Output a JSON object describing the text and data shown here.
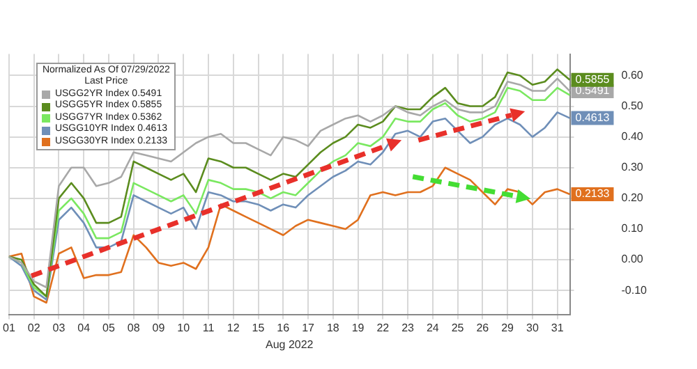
{
  "chart_data": {
    "type": "line",
    "legend_title": "Normalized As Of 07/29/2022",
    "annotations": [
      "Last Price"
    ],
    "xlabel": "Aug 2022",
    "categories": [
      "01",
      null,
      "02",
      null,
      "03",
      null,
      "04",
      null,
      "05",
      null,
      "08",
      null,
      "09",
      null,
      "10",
      null,
      "11",
      null,
      "12",
      null,
      "15",
      null,
      "16",
      null,
      "17",
      null,
      "18",
      null,
      "19",
      null,
      "22",
      null,
      "23",
      null,
      "24",
      null,
      "25",
      null,
      "26",
      null,
      "29",
      null,
      "30",
      null,
      "31",
      null
    ],
    "ylim": [
      -0.18,
      0.67
    ],
    "yticks": [
      {
        "value": -0.1,
        "label": "-0.10"
      },
      {
        "value": 0,
        "label": "0.00"
      },
      {
        "value": 0.1,
        "label": "0.10"
      },
      {
        "value": 0.2,
        "label": "0.20"
      },
      {
        "value": 0.3,
        "label": "0.30"
      },
      {
        "value": 0.4,
        "label": "0.40"
      },
      {
        "value": 0.5,
        "label": "0.50"
      },
      {
        "value": 0.6,
        "label": "0.60"
      }
    ],
    "grid": true,
    "legend": "top left",
    "marker": "none",
    "line_style": "solid",
    "series": [
      {
        "name": "USGG2YR Index 0.5491",
        "color": "#a8a8a8",
        "values": [
          0.01,
          -0.01,
          -0.07,
          -0.09,
          0.24,
          0.3,
          0.3,
          0.24,
          0.25,
          0.27,
          0.35,
          0.34,
          0.33,
          0.32,
          0.35,
          0.38,
          0.4,
          0.41,
          0.38,
          0.38,
          0.36,
          0.34,
          0.4,
          0.39,
          0.37,
          0.42,
          0.44,
          0.46,
          0.47,
          0.45,
          0.47,
          0.5,
          0.48,
          0.47,
          0.5,
          0.52,
          0.49,
          0.48,
          0.48,
          0.5,
          0.58,
          0.57,
          0.55,
          0.55,
          0.59,
          0.5491
        ],
        "value_labels": [
          null,
          null,
          null,
          null,
          null,
          null,
          null,
          null,
          null,
          null,
          null,
          null,
          null,
          null,
          null,
          null,
          null,
          null,
          null,
          null,
          null,
          null,
          null,
          null,
          null,
          null,
          null,
          null,
          null,
          null,
          null,
          null,
          null,
          null,
          null,
          null,
          null,
          null,
          null,
          null,
          null,
          null,
          null,
          null,
          null,
          "0.5491"
        ]
      },
      {
        "name": "USGG5YR Index 0.5855",
        "color": "#5b8c1e",
        "values": [
          0.01,
          0.0,
          -0.08,
          -0.12,
          0.2,
          0.25,
          0.2,
          0.12,
          0.12,
          0.14,
          0.32,
          0.3,
          0.28,
          0.26,
          0.28,
          0.22,
          0.33,
          0.32,
          0.3,
          0.3,
          0.28,
          0.26,
          0.28,
          0.27,
          0.31,
          0.35,
          0.38,
          0.4,
          0.44,
          0.43,
          0.45,
          0.5,
          0.49,
          0.49,
          0.53,
          0.56,
          0.51,
          0.5,
          0.5,
          0.53,
          0.61,
          0.6,
          0.57,
          0.58,
          0.62,
          0.5855
        ],
        "value_labels": [
          null,
          null,
          null,
          null,
          null,
          null,
          null,
          null,
          null,
          null,
          null,
          null,
          null,
          null,
          null,
          null,
          null,
          null,
          null,
          null,
          null,
          null,
          null,
          null,
          null,
          null,
          null,
          null,
          null,
          null,
          null,
          null,
          null,
          null,
          null,
          null,
          null,
          null,
          null,
          null,
          null,
          null,
          null,
          null,
          null,
          "0.5855"
        ]
      },
      {
        "name": "USGG7YR Index 0.5362",
        "color": "#7ae860",
        "values": [
          0.01,
          -0.01,
          -0.09,
          -0.12,
          0.16,
          0.2,
          0.15,
          0.07,
          0.07,
          0.09,
          0.25,
          0.23,
          0.21,
          0.19,
          0.21,
          0.15,
          0.26,
          0.25,
          0.23,
          0.23,
          0.22,
          0.2,
          0.22,
          0.21,
          0.25,
          0.29,
          0.32,
          0.34,
          0.38,
          0.37,
          0.4,
          0.46,
          0.45,
          0.45,
          0.49,
          0.51,
          0.47,
          0.45,
          0.46,
          0.48,
          0.56,
          0.55,
          0.52,
          0.52,
          0.56,
          0.5362
        ]
      },
      {
        "name": "USGG10YR Index 0.4613",
        "color": "#6f8fb8",
        "values": [
          0.01,
          -0.02,
          -0.1,
          -0.13,
          0.13,
          0.17,
          0.12,
          0.04,
          0.04,
          0.06,
          0.21,
          0.19,
          0.17,
          0.15,
          0.17,
          0.1,
          0.22,
          0.21,
          0.19,
          0.19,
          0.18,
          0.16,
          0.18,
          0.17,
          0.21,
          0.24,
          0.27,
          0.29,
          0.32,
          0.31,
          0.35,
          0.41,
          0.42,
          0.4,
          0.45,
          0.46,
          0.42,
          0.38,
          0.4,
          0.44,
          0.46,
          0.44,
          0.4,
          0.43,
          0.48,
          0.4613
        ],
        "value_labels": [
          null,
          null,
          null,
          null,
          null,
          null,
          null,
          null,
          null,
          null,
          null,
          null,
          null,
          null,
          null,
          null,
          null,
          null,
          null,
          null,
          null,
          null,
          null,
          null,
          null,
          null,
          null,
          null,
          null,
          null,
          null,
          null,
          null,
          null,
          null,
          null,
          null,
          null,
          null,
          null,
          null,
          null,
          null,
          null,
          null,
          "0.4613"
        ]
      },
      {
        "name": "USGG30YR Index 0.2133",
        "color": "#e0701e",
        "values": [
          0.01,
          0.02,
          -0.12,
          -0.14,
          0.02,
          0.04,
          -0.06,
          -0.05,
          -0.05,
          -0.04,
          0.08,
          0.04,
          -0.01,
          -0.02,
          -0.01,
          -0.03,
          0.04,
          0.18,
          0.16,
          0.14,
          0.12,
          0.1,
          0.08,
          0.11,
          0.13,
          0.12,
          0.11,
          0.1,
          0.13,
          0.21,
          0.22,
          0.21,
          0.22,
          0.22,
          0.24,
          0.3,
          0.28,
          0.26,
          0.22,
          0.18,
          0.23,
          0.22,
          0.18,
          0.22,
          0.23,
          0.2133
        ],
        "value_labels": [
          null,
          null,
          null,
          null,
          null,
          null,
          null,
          null,
          null,
          null,
          null,
          null,
          null,
          null,
          null,
          null,
          null,
          null,
          null,
          null,
          null,
          null,
          null,
          null,
          null,
          null,
          null,
          null,
          null,
          null,
          null,
          null,
          null,
          null,
          null,
          null,
          null,
          null,
          null,
          null,
          null,
          null,
          null,
          null,
          null,
          "0.2133"
        ]
      }
    ]
  }
}
